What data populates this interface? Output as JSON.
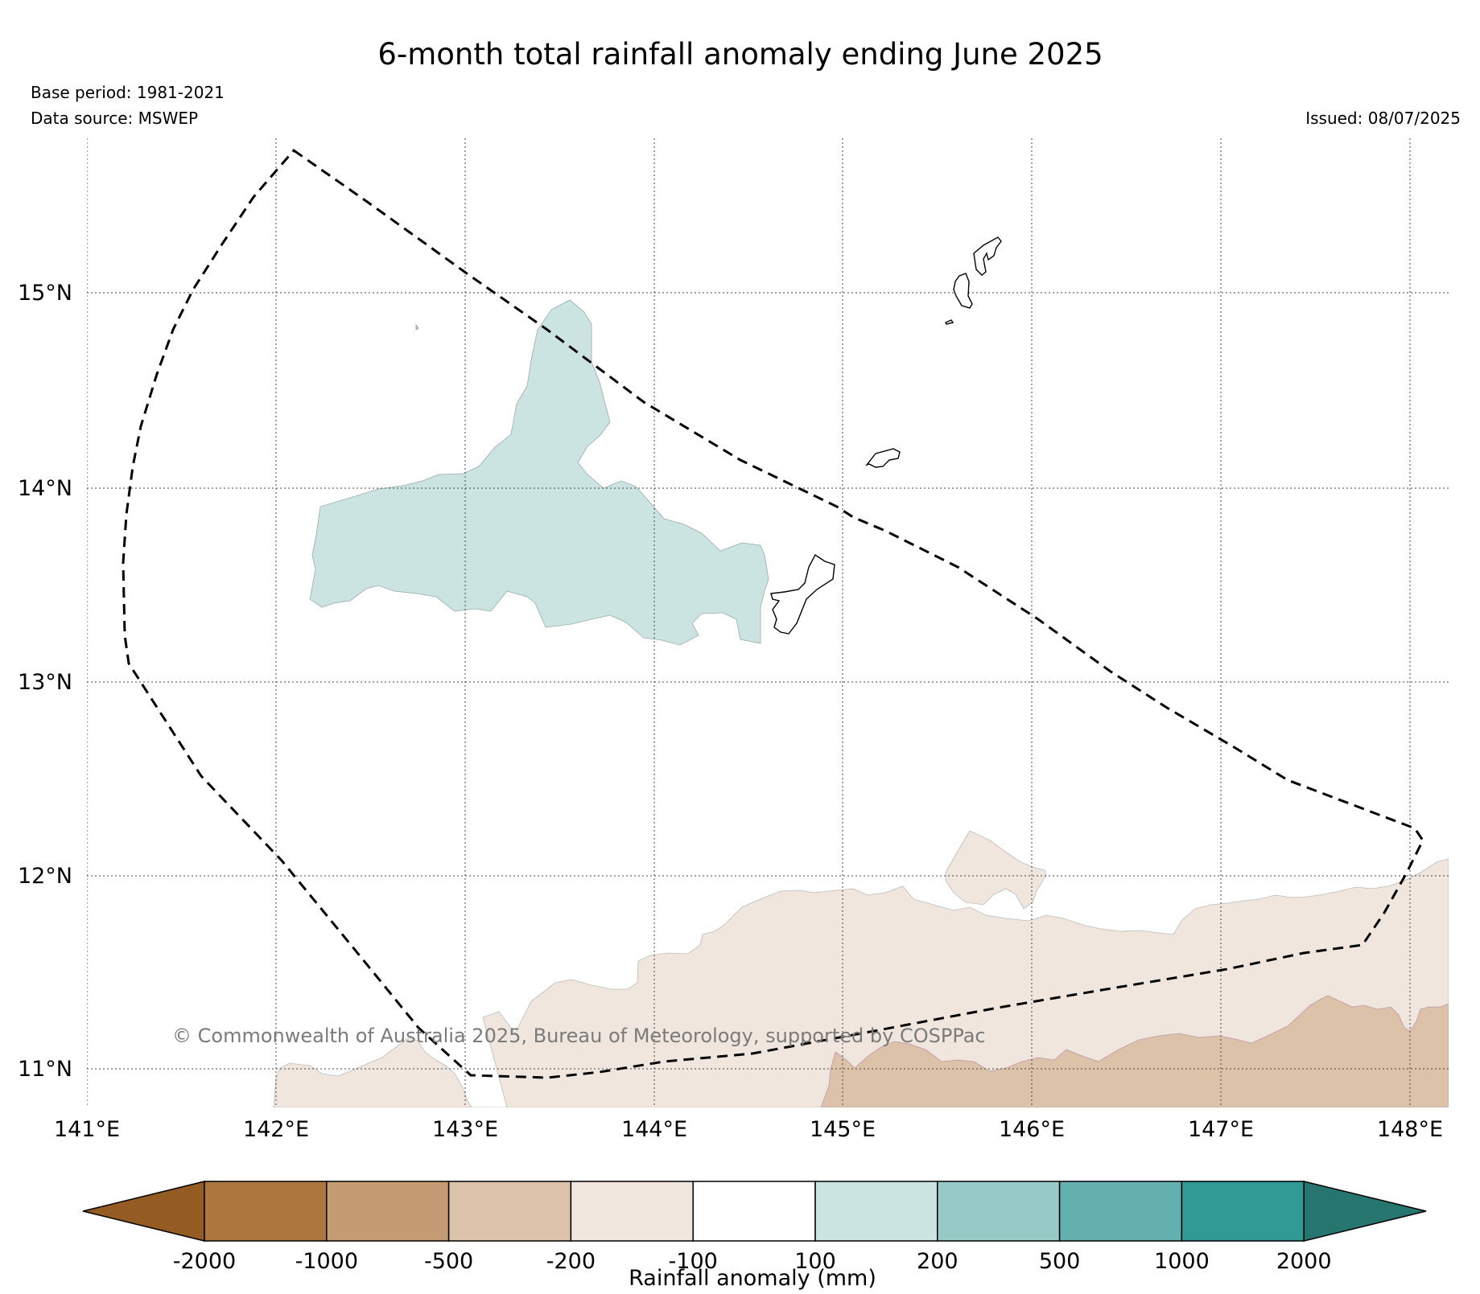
{
  "title": "6-month total rainfall anomaly ending June 2025",
  "base_period": "Base period: 1981-2021",
  "data_source": "Data source: MSWEP",
  "issued": "Issued: 08/07/2025",
  "copyright": "© Commonwealth of Australia 2025, Bureau of Meteorology, supported by COSPPac",
  "axes": {
    "x_ticks": [
      "141°E",
      "142°E",
      "143°E",
      "144°E",
      "145°E",
      "146°E",
      "147°E",
      "148°E"
    ],
    "y_ticks": [
      "15°N",
      "14°N",
      "13°N",
      "12°N",
      "11°N"
    ],
    "lon_range": [
      141.0,
      148.2
    ],
    "lat_range": [
      10.8,
      15.8
    ],
    "grid": true
  },
  "colorbar": {
    "label": "Rainfall anomaly (mm)",
    "tick_labels": [
      "-2000",
      "-1000",
      "-500",
      "-200",
      "-100",
      "100",
      "200",
      "500",
      "1000",
      "2000"
    ],
    "colors": [
      "#945b23",
      "#ad763e",
      "#c49b72",
      "#dbc2a9",
      "#f1e6dd",
      "#ffffff",
      "#cbe4e2",
      "#97c9c7",
      "#64b0ae",
      "#319a95",
      "#26756f"
    ]
  },
  "legend_colors": {
    "positive_100_200": "#cbe4e2",
    "negative_100_200": "#f1e6dd",
    "negative_200_500": "#dbc2a9"
  }
}
